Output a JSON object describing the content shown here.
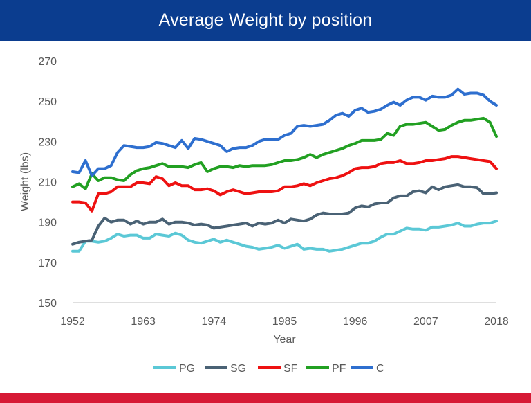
{
  "header": {
    "title": "Average Weight by position"
  },
  "chart_data": {
    "type": "line",
    "title": "Average Weight by position",
    "xlabel": "Year",
    "ylabel": "Weight (lbs)",
    "ylim": [
      150,
      270
    ],
    "xlim": [
      1952,
      2018
    ],
    "yticks": [
      150,
      170,
      190,
      210,
      230,
      250,
      270
    ],
    "xticks": [
      1952,
      1963,
      1974,
      1985,
      1996,
      2007,
      2018
    ],
    "grid": false,
    "legend": "bottom",
    "x": [
      1952,
      1953,
      1954,
      1955,
      1956,
      1957,
      1958,
      1959,
      1960,
      1961,
      1962,
      1963,
      1964,
      1965,
      1966,
      1967,
      1968,
      1969,
      1970,
      1971,
      1972,
      1973,
      1974,
      1975,
      1976,
      1977,
      1978,
      1979,
      1980,
      1981,
      1982,
      1983,
      1984,
      1985,
      1986,
      1987,
      1988,
      1989,
      1990,
      1991,
      1992,
      1993,
      1994,
      1995,
      1996,
      1997,
      1998,
      1999,
      2000,
      2001,
      2002,
      2003,
      2004,
      2005,
      2006,
      2007,
      2008,
      2009,
      2010,
      2011,
      2012,
      2013,
      2014,
      2015,
      2016,
      2017,
      2018
    ],
    "series": [
      {
        "name": "PG",
        "color": "#5bc8d6",
        "values": [
          175.5,
          175.5,
          180.5,
          180.5,
          180,
          180.5,
          182,
          184,
          183,
          183.5,
          183.5,
          182,
          182,
          184,
          183.5,
          183,
          184.5,
          183.5,
          181,
          180,
          179.5,
          180.5,
          181.5,
          180,
          181,
          180,
          179,
          178,
          177.5,
          176.5,
          177,
          177.5,
          178.5,
          177,
          178,
          179,
          176.5,
          177,
          176.5,
          176.5,
          175.5,
          176,
          176.5,
          177.5,
          178.5,
          179.5,
          179.5,
          180.5,
          182.5,
          184,
          184,
          185.5,
          187,
          186.5,
          186.5,
          186,
          187.5,
          187.5,
          188,
          188.5,
          189.5,
          188,
          188,
          189,
          189.5,
          189.5,
          190.5
        ]
      },
      {
        "name": "SG",
        "color": "#4a6275",
        "values": [
          179,
          180,
          180.5,
          181,
          188,
          192,
          190,
          191,
          191,
          189,
          190.5,
          189,
          190,
          190,
          191.5,
          189,
          190,
          190,
          189.5,
          188.5,
          189,
          188.5,
          187,
          187.5,
          188,
          188.5,
          189,
          189.5,
          188,
          189.5,
          189,
          189.5,
          191,
          189.5,
          191.5,
          191,
          190.5,
          191.5,
          193.5,
          194.5,
          194,
          194,
          194,
          194.5,
          197,
          198,
          197.5,
          199,
          199.5,
          199.5,
          202,
          203,
          203,
          205,
          205.5,
          204.5,
          207.5,
          206,
          207.5,
          208,
          208.5,
          207.5,
          207.5,
          207,
          204,
          204,
          204.5
        ]
      },
      {
        "name": "SF",
        "color": "#ee1111",
        "values": [
          200,
          200,
          199.5,
          195.5,
          204,
          204,
          205,
          207.5,
          207.5,
          207.5,
          209.5,
          209.5,
          209,
          212.5,
          211.5,
          208,
          209.5,
          208,
          208,
          206,
          206,
          206.5,
          205.5,
          203.5,
          205,
          206,
          205,
          204,
          204.5,
          205,
          205,
          205,
          205.5,
          207.5,
          207.5,
          208,
          209,
          208,
          209.5,
          210.5,
          211.5,
          212,
          213,
          214.5,
          216.5,
          217,
          217,
          217.5,
          219,
          219.5,
          219.5,
          220.5,
          219,
          219,
          219.5,
          220.5,
          220.5,
          221,
          221.5,
          222.5,
          222.5,
          222,
          221.5,
          221,
          220.5,
          220,
          216.5
        ]
      },
      {
        "name": "PF",
        "color": "#22a022",
        "values": [
          207.5,
          209,
          206.5,
          214,
          210.5,
          212,
          212,
          211,
          210.5,
          213.5,
          215.5,
          216.5,
          217,
          218,
          219,
          217.5,
          217.5,
          217.5,
          217,
          218.5,
          219.5,
          215,
          216.5,
          217.5,
          217.5,
          217,
          218,
          217.5,
          218,
          218,
          218,
          218.5,
          219.5,
          220.5,
          220.5,
          221,
          222,
          223.5,
          222,
          223.5,
          224.5,
          225.5,
          226.5,
          228,
          229,
          230.5,
          230.5,
          230.5,
          231,
          234,
          233,
          237.5,
          238.5,
          238.5,
          239,
          239.5,
          237.5,
          235.5,
          236,
          238,
          239.5,
          240.5,
          240.5,
          241,
          241.5,
          239.5,
          232.5
        ]
      },
      {
        "name": "C",
        "color": "#2e6fcf",
        "values": [
          215,
          214.5,
          220.5,
          213,
          216.5,
          216.5,
          218,
          224.5,
          228,
          227.5,
          227,
          227,
          227.5,
          229.5,
          229,
          228,
          227,
          230.5,
          226.5,
          231.5,
          231,
          230,
          229,
          228,
          225,
          226.5,
          227,
          227,
          228,
          230,
          231,
          231,
          231,
          233,
          234,
          237.5,
          238,
          237.5,
          238,
          238.5,
          240.5,
          243,
          244,
          242.5,
          245.5,
          246.5,
          244.5,
          245,
          246,
          248,
          249.5,
          248,
          250.5,
          252,
          252,
          250.5,
          252.5,
          252,
          252,
          253,
          256,
          253.5,
          254,
          254,
          253,
          250,
          248
        ]
      }
    ]
  }
}
